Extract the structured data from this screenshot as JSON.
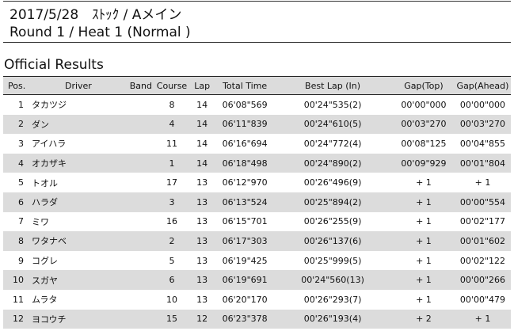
{
  "header": {
    "line1": "2017/5/28　ｽﾄｯｸ / Aメイン",
    "line2": "Round 1 / Heat 1 (Normal )"
  },
  "section_title": "Official Results",
  "columns": [
    "Pos.",
    "Driver",
    "Band",
    "Course",
    "Lap",
    "Total Time",
    "Best Lap (In)",
    "Gap(Top)",
    "Gap(Ahead)"
  ],
  "rows": [
    [
      "1",
      "タカツジ",
      "",
      "8",
      "14",
      "06'08\"569",
      "00'24\"535(2)",
      "00'00\"000",
      "00'00\"000"
    ],
    [
      "2",
      "ダン",
      "",
      "4",
      "14",
      "06'11\"839",
      "00'24\"610(5)",
      "00'03\"270",
      "00'03\"270"
    ],
    [
      "3",
      "アイハラ",
      "",
      "11",
      "14",
      "06'16\"694",
      "00'24\"772(4)",
      "00'08\"125",
      "00'04\"855"
    ],
    [
      "4",
      "オカザキ",
      "",
      "1",
      "14",
      "06'18\"498",
      "00'24\"890(2)",
      "00'09\"929",
      "00'01\"804"
    ],
    [
      "5",
      "トオル",
      "",
      "17",
      "13",
      "06'12\"970",
      "00'26\"496(9)",
      "+ 1",
      "+ 1"
    ],
    [
      "6",
      "ハラダ",
      "",
      "3",
      "13",
      "06'13\"524",
      "00'25\"894(2)",
      "+ 1",
      "00'00\"554"
    ],
    [
      "7",
      "ミワ",
      "",
      "16",
      "13",
      "06'15\"701",
      "00'26\"255(9)",
      "+ 1",
      "00'02\"177"
    ],
    [
      "8",
      "ワタナベ",
      "",
      "2",
      "13",
      "06'17\"303",
      "00'26\"137(6)",
      "+ 1",
      "00'01\"602"
    ],
    [
      "9",
      "コグレ",
      "",
      "5",
      "13",
      "06'19\"425",
      "00'25\"999(5)",
      "+ 1",
      "00'02\"122"
    ],
    [
      "10",
      "スガヤ",
      "",
      "6",
      "13",
      "06'19\"691",
      "00'24\"560(13)",
      "+ 1",
      "00'00\"266"
    ],
    [
      "11",
      "ムラタ",
      "",
      "10",
      "13",
      "06'20\"170",
      "00'26\"293(7)",
      "+ 1",
      "00'00\"479"
    ],
    [
      "12",
      "ヨコウチ",
      "",
      "15",
      "12",
      "06'23\"378",
      "00'26\"193(4)",
      "+ 2",
      "+ 1"
    ]
  ],
  "colors": {
    "row_alt": "#dcdcdc",
    "rule": "#222222"
  }
}
